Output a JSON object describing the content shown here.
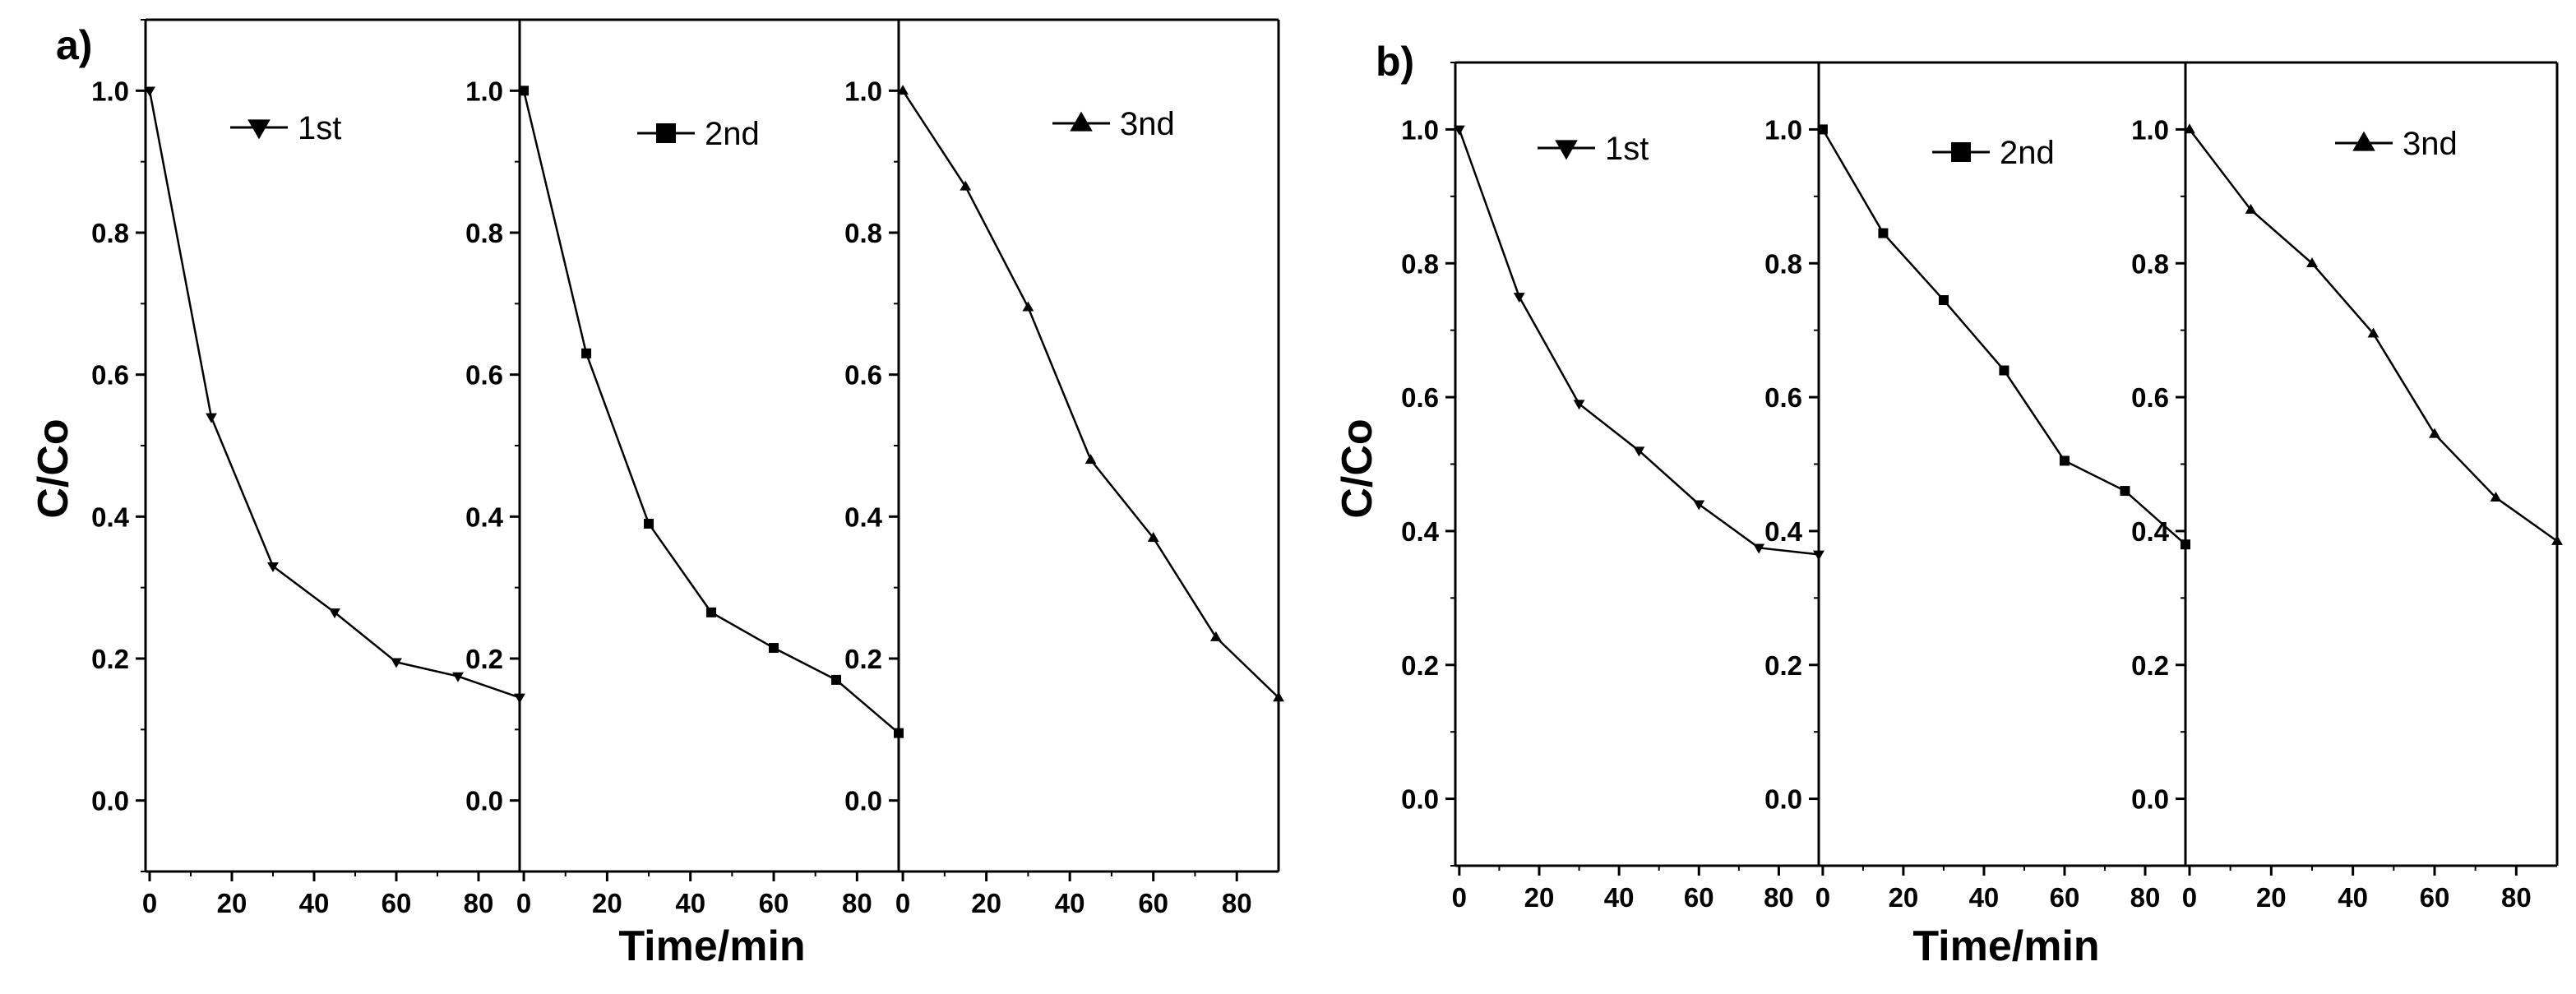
{
  "chart_data": [
    {
      "type": "line",
      "panel_label": "a)",
      "ylabel": "C/Co",
      "xlabel": "Time/min",
      "ylim": [
        -0.1,
        1.1
      ],
      "yticks": [
        0.0,
        0.2,
        0.4,
        0.6,
        0.8,
        1.0
      ],
      "ytick_labels": [
        "0.0",
        "0.2",
        "0.4",
        "0.6",
        "0.8",
        "1.0"
      ],
      "series": [
        {
          "name": "1st",
          "marker": "triangle-down",
          "xlim": [
            -1,
            90
          ],
          "xticks": [
            0,
            20,
            40,
            60,
            80
          ],
          "xtick_labels": [
            "0",
            "20",
            "40",
            "60",
            "80"
          ],
          "x": [
            0,
            15,
            30,
            45,
            60,
            75,
            90
          ],
          "y": [
            1.0,
            0.54,
            0.33,
            0.265,
            0.195,
            0.175,
            0.145
          ]
        },
        {
          "name": "2nd",
          "marker": "square",
          "xlim": [
            -1,
            90
          ],
          "xticks": [
            0,
            20,
            40,
            60,
            80
          ],
          "xtick_labels": [
            "0",
            "20",
            "40",
            "60",
            "80"
          ],
          "x": [
            0,
            15,
            30,
            45,
            60,
            75,
            90
          ],
          "y": [
            1.0,
            0.63,
            0.39,
            0.265,
            0.215,
            0.17,
            0.095
          ]
        },
        {
          "name": "3nd",
          "marker": "triangle-up",
          "xlim": [
            -1,
            90
          ],
          "xticks": [
            0,
            20,
            40,
            60,
            80
          ],
          "xtick_labels": [
            "0",
            "20",
            "40",
            "60",
            "80"
          ],
          "x": [
            0,
            15,
            30,
            45,
            60,
            75,
            90
          ],
          "y": [
            1.0,
            0.865,
            0.695,
            0.48,
            0.37,
            0.23,
            0.145
          ]
        }
      ]
    },
    {
      "type": "line",
      "panel_label": "b)",
      "ylabel": "C/Co",
      "xlabel": "Time/min",
      "ylim": [
        -0.1,
        1.1
      ],
      "yticks": [
        0.0,
        0.2,
        0.4,
        0.6,
        0.8,
        1.0
      ],
      "ytick_labels": [
        "0.0",
        "0.2",
        "0.4",
        "0.6",
        "0.8",
        "1.0"
      ],
      "series": [
        {
          "name": "1st",
          "marker": "triangle-down",
          "xlim": [
            -1,
            90
          ],
          "xticks": [
            0,
            20,
            40,
            60,
            80
          ],
          "xtick_labels": [
            "0",
            "20",
            "40",
            "60",
            "80"
          ],
          "x": [
            0,
            15,
            30,
            45,
            60,
            75,
            90
          ],
          "y": [
            1.0,
            0.75,
            0.59,
            0.52,
            0.44,
            0.375,
            0.365
          ]
        },
        {
          "name": "2nd",
          "marker": "square",
          "xlim": [
            -1,
            90
          ],
          "xticks": [
            0,
            20,
            40,
            60,
            80
          ],
          "xtick_labels": [
            "0",
            "20",
            "40",
            "60",
            "80"
          ],
          "x": [
            0,
            15,
            30,
            45,
            60,
            75,
            90
          ],
          "y": [
            1.0,
            0.845,
            0.745,
            0.64,
            0.505,
            0.46,
            0.38
          ]
        },
        {
          "name": "3nd",
          "marker": "triangle-up",
          "xlim": [
            -1,
            90
          ],
          "xticks": [
            0,
            20,
            40,
            60,
            80
          ],
          "xtick_labels": [
            "0",
            "20",
            "40",
            "60",
            "80"
          ],
          "x": [
            0,
            15,
            30,
            45,
            60,
            75,
            90
          ],
          "y": [
            1.0,
            0.88,
            0.8,
            0.695,
            0.545,
            0.45,
            0.385
          ]
        }
      ]
    }
  ]
}
